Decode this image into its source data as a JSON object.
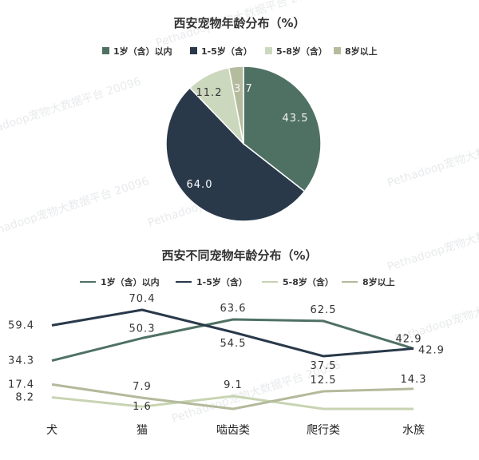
{
  "colors": {
    "age_1": "#4f7163",
    "age_1_5": "#29394a",
    "age_5_8": "#ccd8bd",
    "age_8plus": "#b5bc9e",
    "age_5_8_line": "#c7d4b2",
    "age_8plus_line": "#b3ba9b"
  },
  "watermark": "Pethadoop宠物大数据平台 20096",
  "chart_data": [
    {
      "type": "pie",
      "title": "西安宠物年龄分布（%）",
      "legend_position": "top",
      "slices": [
        {
          "name": "1岁（含）以内",
          "value": 43.5,
          "label": "43.5"
        },
        {
          "name": "1-5岁（含）",
          "value": 64.0,
          "label": "64.0"
        },
        {
          "name": "5-8岁（含）",
          "value": 11.2,
          "label": "11.2"
        },
        {
          "name": "8岁以上",
          "value": 3.7,
          "label": "3.7"
        }
      ]
    },
    {
      "type": "line",
      "title": "西安不同宠物年龄分布（%）",
      "legend_position": "top",
      "categories": [
        "犬",
        "猫",
        "啮齿类",
        "爬行类",
        "水族"
      ],
      "series": [
        {
          "name": "1岁（含）以内",
          "values": [
            34.3,
            50.3,
            63.6,
            62.5,
            42.9
          ]
        },
        {
          "name": "1-5岁（含）",
          "values": [
            59.4,
            70.4,
            54.5,
            37.5,
            42.9
          ]
        },
        {
          "name": "5-8岁（含）",
          "values": [
            8.2,
            1.6,
            9.1,
            0,
            0
          ]
        },
        {
          "name": "8岁以上",
          "values": [
            17.4,
            7.9,
            0,
            12.5,
            14.3
          ]
        }
      ],
      "point_labels": [
        [
          "34.3",
          "50.3",
          "63.6",
          "62.5",
          "42.9"
        ],
        [
          "59.4",
          "70.4",
          "54.5",
          "37.5",
          "42.9"
        ],
        [
          "8.2",
          "1.6",
          "9.1",
          "",
          ""
        ],
        [
          "17.4",
          "7.9",
          "",
          "12.5",
          "14.3"
        ]
      ]
    }
  ]
}
